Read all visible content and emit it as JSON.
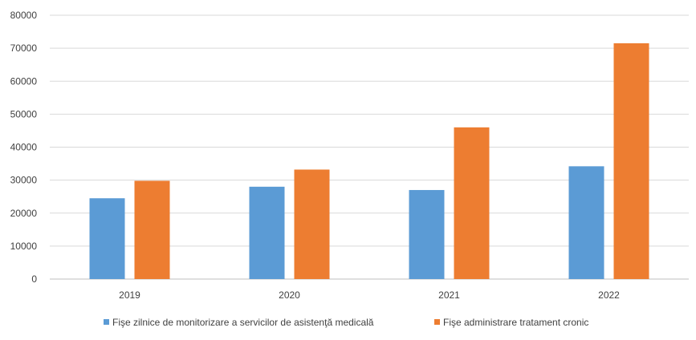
{
  "chart_data": {
    "type": "bar",
    "categories": [
      "2019",
      "2020",
      "2021",
      "2022"
    ],
    "series": [
      {
        "name": "Fişe zilnice de monitorizare a servicilor de asistenţă medicală",
        "color": "#5B9BD5",
        "values": [
          24500,
          28000,
          27000,
          34200
        ]
      },
      {
        "name": "Fişe administrare tratament cronic",
        "color": "#ED7D31",
        "values": [
          29800,
          33200,
          46000,
          71500
        ]
      }
    ],
    "yticks": [
      "0",
      "10000",
      "20000",
      "30000",
      "40000",
      "50000",
      "60000",
      "70000",
      "80000"
    ],
    "ylim": [
      0,
      80000
    ],
    "grid": true,
    "legend_position": "bottom"
  }
}
